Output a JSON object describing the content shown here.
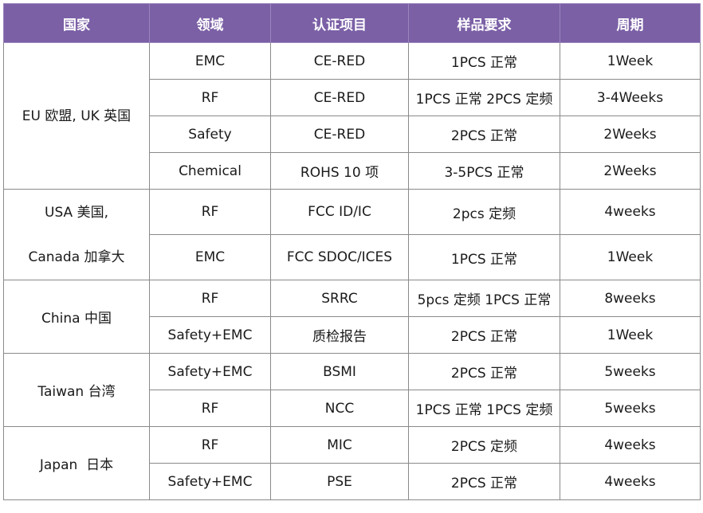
{
  "headers": [
    "国家",
    "领域",
    "认证项目",
    "样品要求",
    "周期"
  ],
  "groups": [
    {
      "country_lines": [
        "EU 欧盟, UK 英国"
      ],
      "rows": [
        [
          "EMC",
          "CE-RED",
          "1PCS 正常",
          "1Week"
        ],
        [
          "RF",
          "CE-RED",
          "1PCS 正常 2PCS 定频",
          "3-4Weeks"
        ],
        [
          "Safety",
          "CE-RED",
          "2PCS 正常",
          "2Weeks"
        ],
        [
          "Chemical",
          "ROHS 10 项",
          "3-5PCS 正常",
          "2Weeks"
        ]
      ]
    },
    {
      "country_lines": [
        "USA 美国,",
        "Canada 加拿大"
      ],
      "rows": [
        [
          "RF",
          "FCC ID/IC",
          "2pcs 定频",
          "4weeks"
        ],
        [
          "EMC",
          "FCC SDOC/ICES",
          "1PCS 正常",
          "1Week"
        ]
      ]
    },
    {
      "country_lines": [
        "China 中国"
      ],
      "rows": [
        [
          "RF",
          "SRRC",
          "5pcs 定频 1PCS 正常",
          "8weeks"
        ],
        [
          "Safety+EMC",
          "质检报告",
          "2PCS 正常",
          "1Week"
        ]
      ]
    },
    {
      "country_lines": [
        "Taiwan 台湾"
      ],
      "rows": [
        [
          "Safety+EMC",
          "BSMI",
          "2PCS 正常",
          "5weeks"
        ],
        [
          "RF",
          "NCC",
          "1PCS 正常 1PCS 定频",
          "5weeks"
        ]
      ]
    },
    {
      "country_lines": [
        "Japan  日本"
      ],
      "rows": [
        [
          "RF",
          "MIC",
          "2PCS 定频",
          "4weeks"
        ],
        [
          "Safety+EMC",
          "PSE",
          "2PCS 正常",
          "4weeks"
        ]
      ]
    }
  ],
  "colors": {
    "header_bg": "#7b60a6",
    "header_text": "#ffffff",
    "border": "#8a8a8a"
  }
}
